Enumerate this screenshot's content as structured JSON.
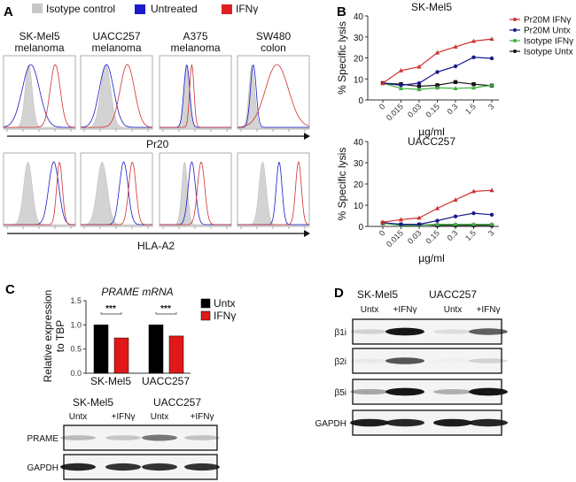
{
  "panelA": {
    "label": "A",
    "legend": [
      {
        "label": "Isotype control",
        "color": "#c8c8c8"
      },
      {
        "label": "Untreated",
        "color": "#1a1acc"
      },
      {
        "label": "IFNγ",
        "color": "#e02020"
      }
    ],
    "cell_lines": [
      {
        "name": "SK-Mel5",
        "type": "melanoma"
      },
      {
        "name": "UACC257",
        "type": "melanoma"
      },
      {
        "name": "A375",
        "type": "melanoma"
      },
      {
        "name": "SW480",
        "type": "colon"
      }
    ],
    "row1_axis": "Pr20",
    "row2_axis": "HLA-A2"
  },
  "panelB": {
    "label": "B",
    "legend": [
      {
        "label": "Pr20M IFNγ",
        "color": "#d03030"
      },
      {
        "label": "Pr20M Untx",
        "color": "#1a1a8c"
      },
      {
        "label": "Isotype IFNγ",
        "color": "#40b040"
      },
      {
        "label": "Isotype Untx",
        "color": "#111111"
      }
    ]
  },
  "panelC": {
    "label": "C",
    "blot": {
      "groups": [
        "SK-Mel5",
        "UACC257"
      ],
      "lanes": [
        "Untx",
        "+IFNγ",
        "Untx",
        "+IFNγ"
      ],
      "rows": [
        "PRAME",
        "GAPDH"
      ]
    }
  },
  "panelD": {
    "label": "D",
    "groups": [
      "SK-Mel5",
      "UACC257"
    ],
    "lanes": [
      "Untx",
      "+IFNγ",
      "Untx",
      "+IFNγ"
    ],
    "rows": [
      "β1i",
      "β2i",
      "β5i",
      "GAPDH"
    ]
  },
  "chart_data": [
    {
      "type": "line",
      "title": "SK-Mel5",
      "xlabel": "µg/ml",
      "ylabel": "% Specific lysis",
      "categories": [
        "0",
        "0.015",
        "0.03",
        "0.15",
        "0.3",
        "1.5",
        "3"
      ],
      "ylim": [
        0,
        40
      ],
      "yticks": [
        "0",
        "10",
        "20",
        "30",
        "40"
      ],
      "legend": "top-right",
      "series": [
        {
          "name": "Pr20M IFNγ",
          "values": [
            8,
            14,
            15.8,
            22.5,
            25.3,
            28,
            29
          ]
        },
        {
          "name": "Pr20M Untx",
          "values": [
            8,
            7,
            8,
            13.3,
            16,
            20.3,
            19.8
          ]
        },
        {
          "name": "Isotype IFNγ",
          "values": [
            8,
            5.5,
            5,
            5.8,
            5.5,
            5.8,
            7
          ]
        },
        {
          "name": "Isotype Untx",
          "values": [
            8,
            7.5,
            6.5,
            7,
            8.5,
            7.5,
            6.8
          ]
        }
      ]
    },
    {
      "type": "line",
      "title": "UACC257",
      "xlabel": "µg/ml",
      "ylabel": "% Specific lysis",
      "categories": [
        "0",
        "0.015",
        "0.03",
        "0.15",
        "0.3",
        "1.5",
        "3"
      ],
      "ylim": [
        0,
        40
      ],
      "yticks": [
        "0",
        "10",
        "20",
        "30",
        "40"
      ],
      "series": [
        {
          "name": "Pr20M IFNγ",
          "values": [
            2,
            3.2,
            4,
            8.5,
            12.5,
            16.5,
            17
          ]
        },
        {
          "name": "Pr20M Untx",
          "values": [
            1.8,
            1,
            1,
            2.7,
            4.7,
            6.2,
            5.5
          ]
        },
        {
          "name": "Isotype IFNγ",
          "values": [
            1.5,
            0.5,
            0.5,
            1,
            1,
            1,
            1
          ]
        },
        {
          "name": "Isotype Untx",
          "values": [
            1.5,
            0.8,
            0.8,
            0.5,
            0.5,
            0.5,
            0.5
          ]
        }
      ]
    },
    {
      "type": "bar",
      "title": "PRAME mRNA",
      "ylabel": "Relative expression to TBP",
      "categories": [
        "SK-Mel5",
        "UACC257"
      ],
      "ylim": [
        0,
        1.5
      ],
      "yticks": [
        "0.0",
        "0.5",
        "1.0",
        "1.5"
      ],
      "legend": "right",
      "significance": [
        "***",
        "***"
      ],
      "series": [
        {
          "name": "Untx",
          "color": "#000000",
          "values": [
            1.0,
            1.0
          ]
        },
        {
          "name": "IFNγ",
          "color": "#e01818",
          "values": [
            0.73,
            0.77
          ]
        }
      ]
    }
  ]
}
